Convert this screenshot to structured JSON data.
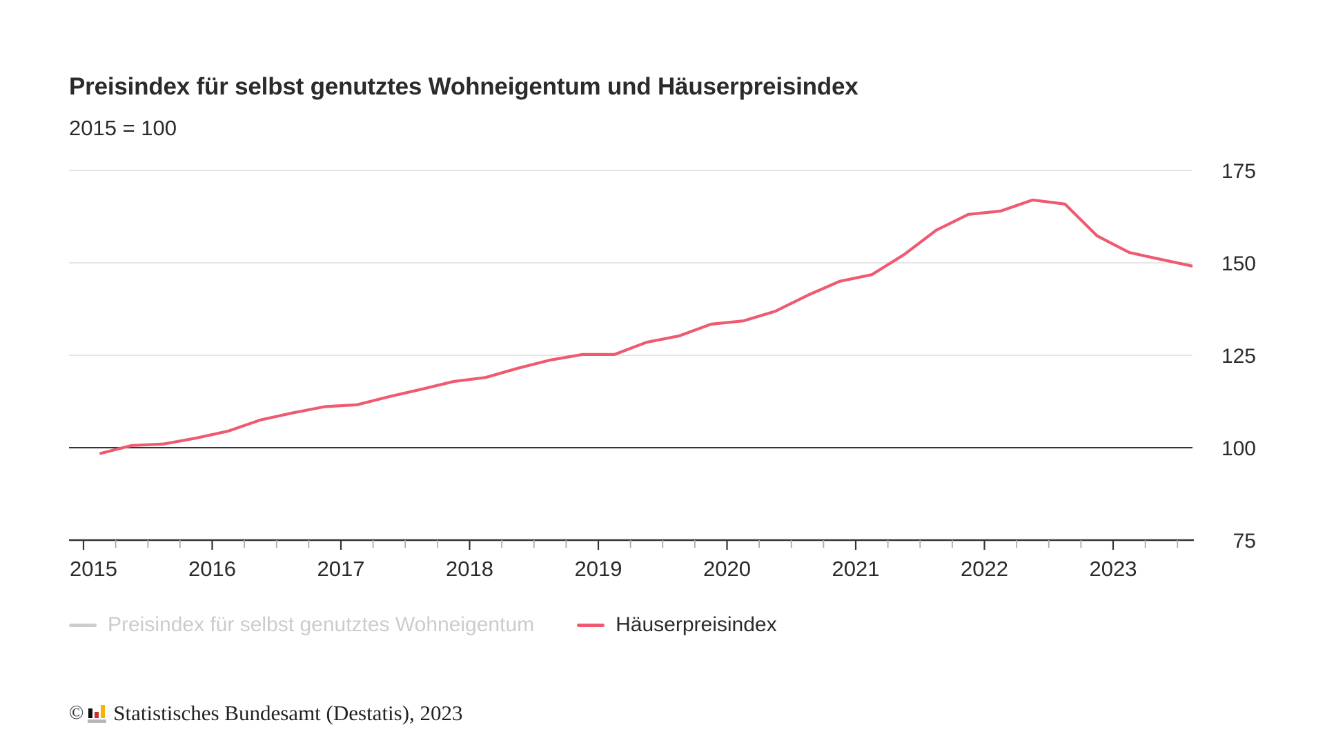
{
  "header": {
    "title": "Preisindex für selbst genutztes Wohneigentum und Häuserpreisindex",
    "subtitle": "2015 = 100"
  },
  "legend": [
    {
      "label": "Preisindex für selbst genutztes Wohneigentum",
      "color": "#cccccc",
      "active": false
    },
    {
      "label": "Häuserpreisindex",
      "color": "#ef5a70",
      "active": true
    }
  ],
  "footer": {
    "copyright_symbol": "©",
    "source": "Statistisches Bundesamt (Destatis), 2023"
  },
  "colors": {
    "line": "#ef5a70",
    "inactive": "#cccccc",
    "grid": "#dddddd",
    "baseline": "#333333",
    "axis": "#333333",
    "text": "#2b2b2b"
  },
  "chart_data": {
    "type": "line",
    "title": "Preisindex für selbst genutztes Wohneigentum und Häuserpreisindex",
    "subtitle": "2015 = 100",
    "xlabel": "",
    "ylabel": "",
    "x_tick_labels": [
      "2015",
      "2016",
      "2017",
      "2018",
      "2019",
      "2020",
      "2021",
      "2022",
      "2023"
    ],
    "x_range": [
      2015,
      2023.75
    ],
    "y_ticks": [
      75,
      100,
      125,
      150,
      175
    ],
    "ylim": [
      75,
      175
    ],
    "y_axis_side": "right",
    "reference_line": 100,
    "grid": true,
    "legend_position": "bottom-left",
    "x": [
      "2015 Q1",
      "2015 Q2",
      "2015 Q3",
      "2015 Q4",
      "2016 Q1",
      "2016 Q2",
      "2016 Q3",
      "2016 Q4",
      "2017 Q1",
      "2017 Q2",
      "2017 Q3",
      "2017 Q4",
      "2018 Q1",
      "2018 Q2",
      "2018 Q3",
      "2018 Q4",
      "2019 Q1",
      "2019 Q2",
      "2019 Q3",
      "2019 Q4",
      "2020 Q1",
      "2020 Q2",
      "2020 Q3",
      "2020 Q4",
      "2021 Q1",
      "2021 Q2",
      "2021 Q3",
      "2021 Q4",
      "2022 Q1",
      "2022 Q2",
      "2022 Q3",
      "2022 Q4",
      "2023 Q1",
      "2023 Q2",
      "2023 Q3"
    ],
    "series": [
      {
        "name": "Preisindex für selbst genutztes Wohneigentum",
        "visible": false,
        "values": []
      },
      {
        "name": "Häuserpreisindex",
        "visible": true,
        "values": [
          98.4,
          100.6,
          101.0,
          102.6,
          104.5,
          107.5,
          109.4,
          111.1,
          111.6,
          113.8,
          115.8,
          117.9,
          119.0,
          121.5,
          123.7,
          125.2,
          125.2,
          128.5,
          130.2,
          133.4,
          134.3,
          136.9,
          141.2,
          145.0,
          146.8,
          152.2,
          158.8,
          163.1,
          164.0,
          167.0,
          165.9,
          157.3,
          152.8,
          150.9,
          149.1
        ]
      }
    ]
  }
}
